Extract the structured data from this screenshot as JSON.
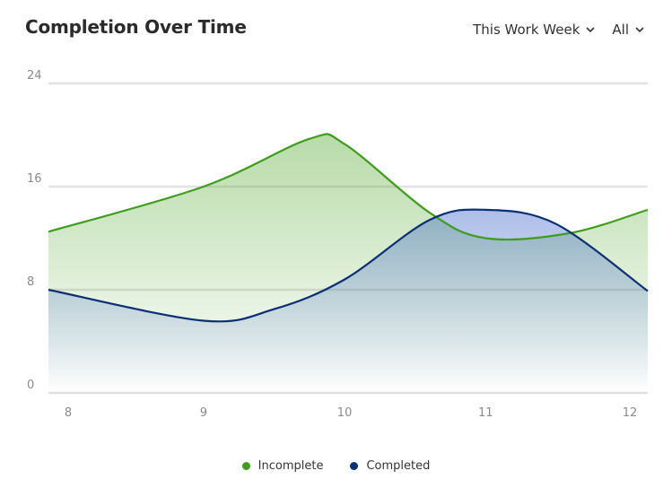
{
  "header": {
    "title": "Completion Over Time",
    "period_filter": "This Work Week",
    "scope_filter": "All"
  },
  "colors": {
    "incomplete": "#3f9c1f",
    "completed": "#0b2f73",
    "grid": "#e1e1e1",
    "tick": "#8a8a8a"
  },
  "icons": {
    "dropdown": "chevron-down-icon"
  },
  "chart_data": {
    "type": "area",
    "title": "Completion Over Time",
    "xlabel": "",
    "ylabel": "",
    "x": [
      8,
      9,
      10,
      11,
      12
    ],
    "x_ticks": [
      "8",
      "9",
      "10",
      "11",
      "12"
    ],
    "y_ticks": [
      "0",
      "8",
      "16",
      "24"
    ],
    "ylim": [
      0,
      24
    ],
    "xlim": [
      7.9,
      12.15
    ],
    "grid": true,
    "legend_position": "bottom-center",
    "series": [
      {
        "name": "Incomplete",
        "points": [
          [
            7.9,
            12.5
          ],
          [
            9,
            16
          ],
          [
            9.75,
            19.7
          ],
          [
            10,
            19.3
          ],
          [
            10.6,
            14
          ],
          [
            11,
            12
          ],
          [
            11.6,
            12.4
          ],
          [
            12.15,
            14.2
          ]
        ]
      },
      {
        "name": "Completed",
        "points": [
          [
            7.9,
            8
          ],
          [
            9,
            5.6
          ],
          [
            9.5,
            6.5
          ],
          [
            10,
            8.8
          ],
          [
            10.6,
            13.4
          ],
          [
            11,
            14.2
          ],
          [
            11.5,
            13.1
          ],
          [
            12.15,
            7.9
          ]
        ]
      }
    ]
  }
}
